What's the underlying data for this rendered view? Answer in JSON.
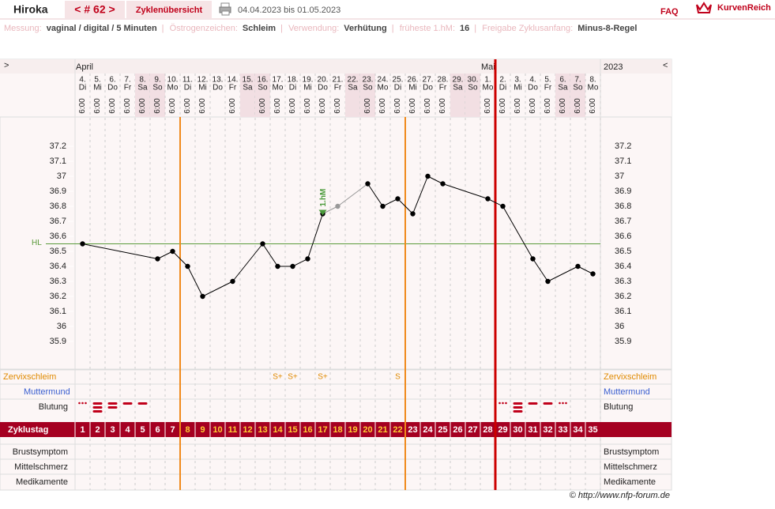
{
  "header": {
    "name": "Hiroka",
    "cycle_nav": "< # 62 >",
    "overview": "Zyklenübersicht",
    "period": "04.04.2023 bis 01.05.2023",
    "faq": "FAQ",
    "logo": "KurvenReich"
  },
  "info": [
    {
      "label": "Messung:",
      "value": "vaginal / digital / 5 Minuten"
    },
    {
      "label": "Östrogenzeichen:",
      "value": "Schleim"
    },
    {
      "label": "Verwendung:",
      "value": "Verhütung"
    },
    {
      "label": "früheste 1.hM:",
      "value": "16"
    },
    {
      "label": "Freigabe Zyklusanfang:",
      "value": "Minus-8-Regel"
    }
  ],
  "footer": "© http://www.nfp-forum.de",
  "chart_data": {
    "type": "line",
    "nav_prev": ">",
    "nav_next": "<",
    "months": [
      "April",
      "Mai"
    ],
    "year": "2023",
    "dates": [
      "4.",
      "5.",
      "6.",
      "7.",
      "8.",
      "9.",
      "10.",
      "11.",
      "12.",
      "13.",
      "14.",
      "15.",
      "16.",
      "17.",
      "18.",
      "19.",
      "20.",
      "21.",
      "22.",
      "23.",
      "24.",
      "25.",
      "26.",
      "27.",
      "28.",
      "29.",
      "30.",
      "1.",
      "2.",
      "3.",
      "4.",
      "5.",
      "6.",
      "7.",
      "8."
    ],
    "weekdays": [
      "Di",
      "Mi",
      "Do",
      "Fr",
      "Sa",
      "So",
      "Mo",
      "Di",
      "Mi",
      "Do",
      "Fr",
      "Sa",
      "So",
      "Mo",
      "Di",
      "Mi",
      "Do",
      "Fr",
      "Sa",
      "So",
      "Mo",
      "Di",
      "Mi",
      "Do",
      "Fr",
      "Sa",
      "So",
      "Mo",
      "Di",
      "Mi",
      "Do",
      "Fr",
      "Sa",
      "So",
      "Mo"
    ],
    "times": [
      "6:00",
      "6:00",
      "6:00",
      "6:00",
      "6:00",
      "6:00",
      "6:00",
      "6:00",
      "6:00",
      null,
      "6:00",
      null,
      "6:00",
      "6:00",
      "6:00",
      "6:00",
      "6:00",
      "6:00",
      null,
      "6:00",
      "6:00",
      "6:00",
      "6:00",
      "6:00",
      "6:00",
      null,
      null,
      "6:00",
      "6:00",
      "6:00",
      "6:00",
      "6:00",
      "6:00",
      "6:00",
      "6:00"
    ],
    "categories": [
      "1",
      "2",
      "3",
      "4",
      "5",
      "6",
      "7",
      "8",
      "9",
      "10",
      "11",
      "12",
      "13",
      "14",
      "15",
      "16",
      "17",
      "18",
      "19",
      "20",
      "21",
      "22",
      "23",
      "24",
      "25",
      "26",
      "27",
      "28",
      "29",
      "30",
      "31",
      "32",
      "33",
      "34",
      "35"
    ],
    "values": [
      36.55,
      null,
      null,
      null,
      null,
      36.45,
      36.5,
      36.4,
      36.2,
      null,
      36.3,
      null,
      36.55,
      36.4,
      36.4,
      36.45,
      36.75,
      36.8,
      null,
      36.95,
      36.8,
      36.85,
      36.75,
      37.0,
      36.95,
      null,
      null,
      36.85,
      36.8,
      null,
      36.45,
      36.3,
      null,
      36.4,
      36.35
    ],
    "color": "#000000",
    "excluded_color": "#999999",
    "excluded": [
      false,
      false,
      false,
      false,
      false,
      false,
      false,
      false,
      false,
      false,
      false,
      false,
      false,
      false,
      false,
      false,
      false,
      true,
      false,
      false,
      false,
      false,
      false,
      false,
      false,
      false,
      false,
      false,
      false,
      false,
      false,
      false,
      false,
      false,
      false
    ],
    "ylim": [
      35.9,
      37.2
    ],
    "yticks": [
      35.9,
      36,
      36.1,
      36.2,
      36.3,
      36.4,
      36.5,
      36.6,
      36.7,
      36.8,
      36.9,
      37,
      37.1,
      37.2
    ],
    "hl": 36.55,
    "hl_label": "HL",
    "first_high_day": 17,
    "first_high_label": "1.hM",
    "cover_lines": [
      7,
      22
    ],
    "cycle_end": 28,
    "row_labels": {
      "mucus": "Zervixschleim",
      "cervix": "Muttermund",
      "bleeding": "Blutung",
      "cycle_day": "Zyklustag",
      "breast": "Brustsymptom",
      "pain": "Mittelschmerz",
      "meds": "Medikamente"
    },
    "mucus": [
      null,
      null,
      null,
      null,
      null,
      null,
      null,
      null,
      null,
      null,
      null,
      null,
      null,
      "S+",
      "S+",
      null,
      "S+",
      null,
      null,
      null,
      null,
      "S",
      null,
      null,
      null,
      null,
      null,
      null,
      null,
      null,
      null,
      null,
      null,
      null,
      null
    ],
    "bleeding": [
      1,
      4,
      3,
      2,
      2,
      null,
      null,
      null,
      null,
      null,
      null,
      null,
      null,
      null,
      null,
      null,
      null,
      null,
      null,
      null,
      null,
      null,
      null,
      null,
      null,
      null,
      null,
      null,
      1,
      4,
      2,
      2,
      1,
      null,
      null
    ]
  }
}
